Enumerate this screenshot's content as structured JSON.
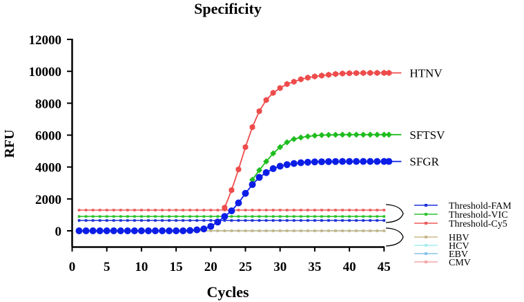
{
  "chart_data": {
    "type": "line",
    "title": "Specificity",
    "xlabel": "Cycles",
    "ylabel": "RFU",
    "xlim": [
      0,
      45
    ],
    "ylim": [
      -1000,
      12000
    ],
    "x_ticks": [
      "0",
      "5",
      "10",
      "15",
      "20",
      "25",
      "30",
      "35",
      "40",
      "45"
    ],
    "y_ticks": [
      "0",
      "2000",
      "4000",
      "6000",
      "8000",
      "10000",
      "12000"
    ],
    "grid": false,
    "series": [
      {
        "name": "HTNV",
        "color": "#ee4b4b",
        "marker": "hexagon",
        "end_label": "HTNV",
        "x": [
          22,
          23,
          24,
          25,
          26,
          27,
          28,
          29,
          30,
          31,
          32,
          33,
          34,
          35,
          36,
          37,
          38,
          39,
          40,
          41,
          42,
          43,
          44,
          45
        ],
        "values": [
          1450,
          2550,
          3850,
          5250,
          6500,
          7500,
          8200,
          8650,
          8950,
          9200,
          9350,
          9500,
          9600,
          9680,
          9730,
          9780,
          9830,
          9860,
          9880,
          9890,
          9895,
          9900,
          9900,
          9900
        ],
        "line_end": 47.5
      },
      {
        "name": "SFTSV",
        "color": "#1ebd1e",
        "marker": "diamond",
        "end_label": "SFTSV",
        "x": [
          26,
          27,
          28,
          29,
          30,
          31,
          32,
          33,
          34,
          35,
          36,
          37,
          38,
          39,
          40,
          41,
          42,
          43,
          44,
          45
        ],
        "values": [
          3200,
          3800,
          4350,
          4850,
          5250,
          5550,
          5750,
          5850,
          5920,
          5970,
          6000,
          6010,
          6020,
          6030,
          6030,
          6030,
          6030,
          6030,
          6030,
          6030
        ],
        "line_end": 47.5
      },
      {
        "name": "SFGR",
        "color": "#0c1ee6",
        "marker": "circle",
        "end_label": "SFGR",
        "x": [
          1,
          2,
          3,
          4,
          5,
          6,
          7,
          8,
          9,
          10,
          11,
          12,
          13,
          14,
          15,
          16,
          17,
          18,
          19,
          20,
          21,
          22,
          23,
          24,
          25,
          26,
          27,
          28,
          29,
          30,
          31,
          32,
          33,
          34,
          35,
          36,
          37,
          38,
          39,
          40,
          41,
          42,
          43,
          44,
          45
        ],
        "values": [
          0,
          0,
          0,
          0,
          0,
          0,
          0,
          0,
          0,
          0,
          0,
          0,
          0,
          0,
          0,
          0,
          20,
          60,
          120,
          280,
          550,
          900,
          1250,
          1750,
          2350,
          2900,
          3350,
          3650,
          3900,
          4050,
          4150,
          4220,
          4270,
          4300,
          4320,
          4330,
          4340,
          4345,
          4350,
          4350,
          4350,
          4350,
          4350,
          4350,
          4350
        ],
        "line_end": 47.5
      },
      {
        "name": "Threshold-FAM",
        "color": "#1a2fd8",
        "marker": "square-small",
        "value": 650,
        "range": [
          1,
          45
        ]
      },
      {
        "name": "Threshold-VIC",
        "color": "#2fc22f",
        "marker": "square-small",
        "value": 900,
        "range": [
          1,
          45
        ]
      },
      {
        "name": "Threshold-Cy5",
        "color": "#ee5a5a",
        "marker": "square-small",
        "value": 1300,
        "range": [
          1,
          45
        ]
      },
      {
        "name": "HBV",
        "color": "#c8b88a",
        "marker": "square-small",
        "value": 0,
        "range": [
          1,
          45
        ]
      },
      {
        "name": "HCV",
        "color": "#a6ecec",
        "marker": "square-small",
        "value": 0,
        "range": [
          1,
          45
        ]
      },
      {
        "name": "EBV",
        "color": "#88c4ea",
        "marker": "square-small",
        "value": 0,
        "range": [
          1,
          45
        ]
      },
      {
        "name": "CMV",
        "color": "#f6a6a6",
        "marker": "square-small",
        "value": 0,
        "range": [
          1,
          45
        ]
      }
    ],
    "legend": {
      "position": "right-lower",
      "entries": [
        "Threshold-FAM",
        "Threshold-VIC",
        "Threshold-Cy5",
        "HBV",
        "HCV",
        "EBV",
        "CMV"
      ]
    }
  }
}
